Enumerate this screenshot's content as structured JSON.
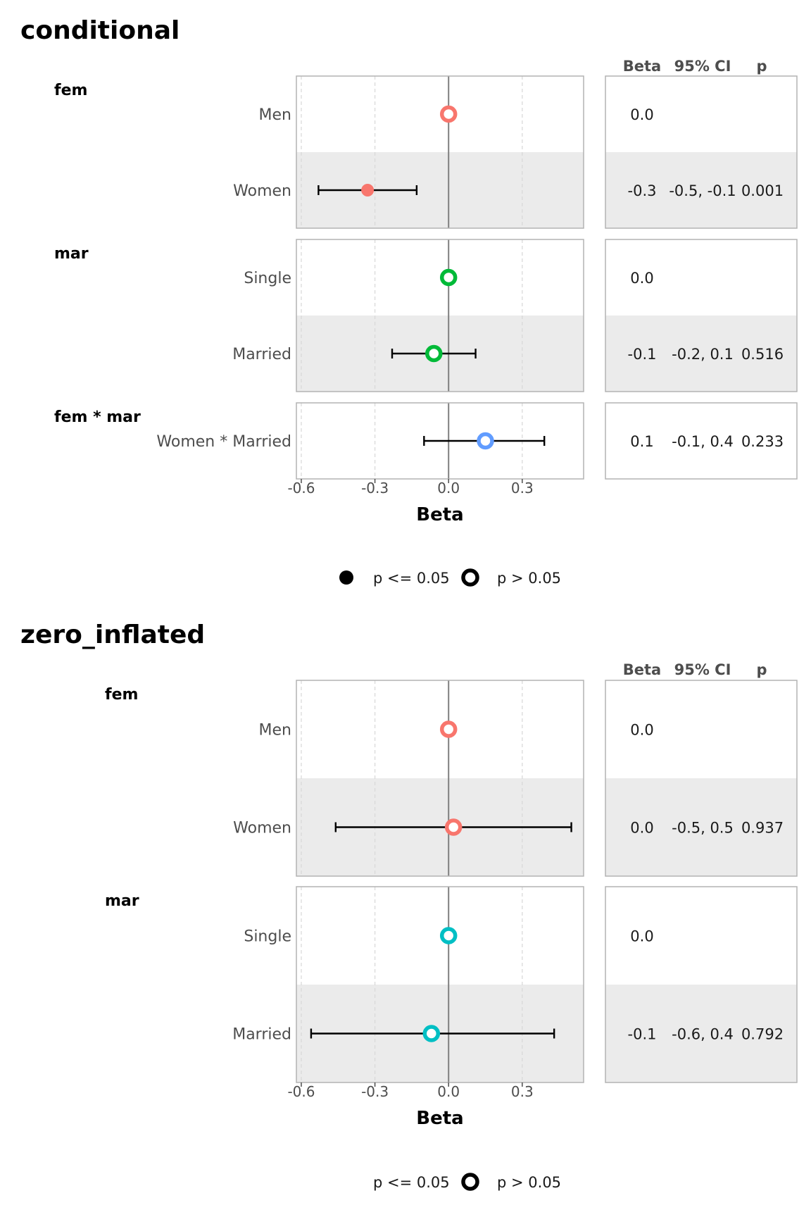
{
  "chart_data": [
    {
      "type": "forest",
      "title": "conditional",
      "xlabel": "Beta",
      "xlim": [
        -0.62,
        0.55
      ],
      "xticks": [
        -0.6,
        -0.3,
        0.0,
        0.3
      ],
      "xtick_labels": [
        "-0.6",
        "-0.3",
        "0.0",
        "0.3"
      ],
      "grid": true,
      "table_headers": [
        "Beta",
        "95% CI",
        "p"
      ],
      "legend": {
        "position": "bottom",
        "items": [
          {
            "label": "p <= 0.05",
            "filled": true
          },
          {
            "label": "p > 0.05",
            "filled": false
          }
        ]
      },
      "groups": [
        {
          "label": "fem",
          "rows": [
            {
              "label": "Men",
              "beta": 0.0,
              "ci_low": null,
              "ci_high": null,
              "significant": false,
              "color": "#F8766D",
              "beta_text": "0.0",
              "ci_text": "",
              "p_text": ""
            },
            {
              "label": "Women",
              "beta": -0.33,
              "ci_low": -0.53,
              "ci_high": -0.13,
              "significant": true,
              "color": "#F8766D",
              "beta_text": "-0.3",
              "ci_text": "-0.5, -0.1",
              "p_text": "0.001"
            }
          ]
        },
        {
          "label": "mar",
          "rows": [
            {
              "label": "Single",
              "beta": 0.0,
              "ci_low": null,
              "ci_high": null,
              "significant": false,
              "color": "#00BA38",
              "beta_text": "0.0",
              "ci_text": "",
              "p_text": ""
            },
            {
              "label": "Married",
              "beta": -0.06,
              "ci_low": -0.23,
              "ci_high": 0.11,
              "significant": false,
              "color": "#00BA38",
              "beta_text": "-0.1",
              "ci_text": "-0.2, 0.1",
              "p_text": "0.516"
            }
          ]
        },
        {
          "label": "fem * mar",
          "rows": [
            {
              "label": "Women * Married",
              "beta": 0.15,
              "ci_low": -0.1,
              "ci_high": 0.39,
              "significant": false,
              "color": "#619CFF",
              "beta_text": "0.1",
              "ci_text": "-0.1, 0.4",
              "p_text": "0.233"
            }
          ]
        }
      ]
    },
    {
      "type": "forest",
      "title": "zero_inflated",
      "xlabel": "Beta",
      "xlim": [
        -0.62,
        0.55
      ],
      "xticks": [
        -0.6,
        -0.3,
        0.0,
        0.3
      ],
      "xtick_labels": [
        "-0.6",
        "-0.3",
        "0.0",
        "0.3"
      ],
      "grid": true,
      "table_headers": [
        "Beta",
        "95% CI",
        "p"
      ],
      "legend": {
        "position": "bottom",
        "items": [
          {
            "label": "p <= 0.05",
            "filled": true
          },
          {
            "label": "p > 0.05",
            "filled": false
          }
        ]
      },
      "groups": [
        {
          "label": "fem",
          "rows": [
            {
              "label": "Men",
              "beta": 0.0,
              "ci_low": null,
              "ci_high": null,
              "significant": false,
              "color": "#F8766D",
              "beta_text": "0.0",
              "ci_text": "",
              "p_text": ""
            },
            {
              "label": "Women",
              "beta": 0.02,
              "ci_low": -0.46,
              "ci_high": 0.5,
              "significant": false,
              "color": "#F8766D",
              "beta_text": "0.0",
              "ci_text": "-0.5, 0.5",
              "p_text": "0.937"
            }
          ]
        },
        {
          "label": "mar",
          "rows": [
            {
              "label": "Single",
              "beta": 0.0,
              "ci_low": null,
              "ci_high": null,
              "significant": false,
              "color": "#00BFC4",
              "beta_text": "0.0",
              "ci_text": "",
              "p_text": ""
            },
            {
              "label": "Married",
              "beta": -0.07,
              "ci_low": -0.56,
              "ci_high": 0.43,
              "significant": false,
              "color": "#00BFC4",
              "beta_text": "-0.1",
              "ci_text": "-0.6, 0.4",
              "p_text": "0.792"
            }
          ]
        }
      ]
    }
  ]
}
